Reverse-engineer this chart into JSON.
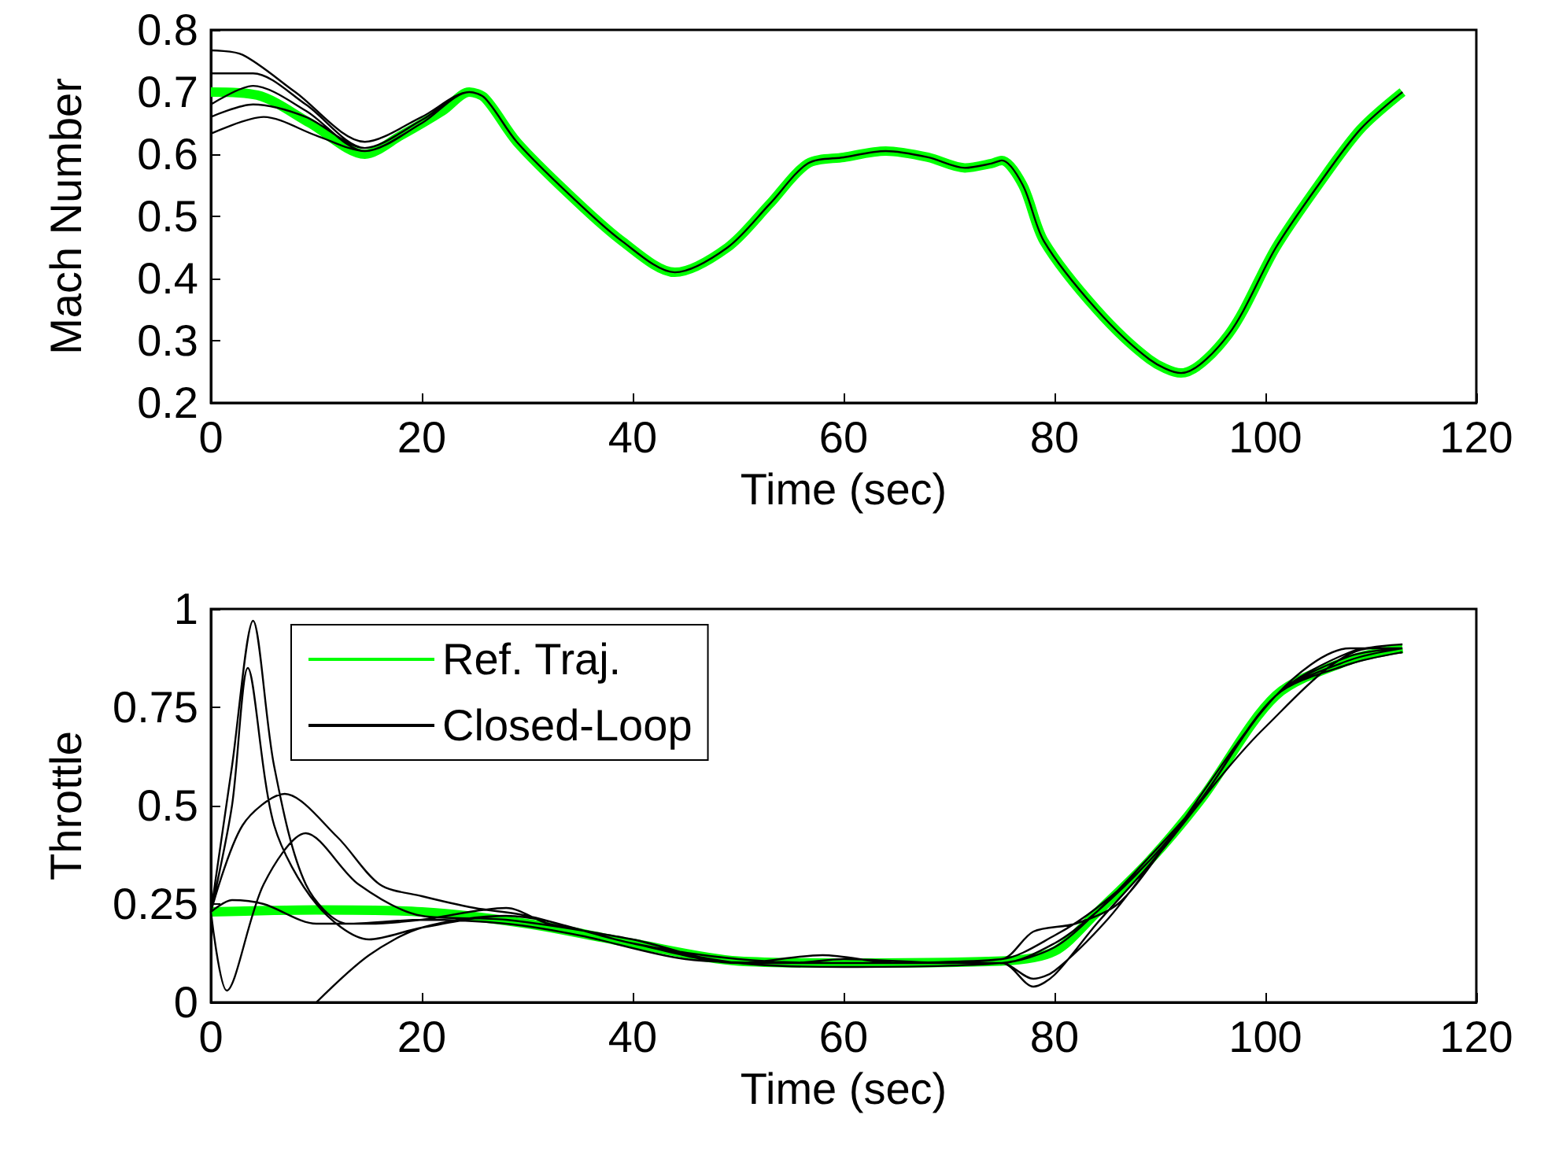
{
  "chart_data": [
    {
      "type": "line",
      "xlabel": "Time (sec)",
      "ylabel": "Mach Number",
      "xlim": [
        0,
        120
      ],
      "ylim": [
        0.2,
        0.8
      ],
      "xticks": [
        0,
        20,
        40,
        60,
        80,
        100,
        120
      ],
      "yticks": [
        0.2,
        0.3,
        0.4,
        0.5,
        0.6,
        0.7,
        0.8
      ],
      "legend": false,
      "grid": false,
      "series": [
        {
          "color": "#00ff00",
          "x": [
            0,
            4.4,
            9.4,
            14.6,
            18,
            22,
            24.5,
            26,
            29,
            34,
            39,
            44,
            49,
            53,
            56.6,
            60,
            64,
            68,
            71.5,
            74,
            75,
            77,
            79,
            84,
            89,
            92,
            96.5,
            101,
            105,
            109,
            113
          ],
          "values": [
            0.7,
            0.695,
            0.65,
            0.6,
            0.63,
            0.67,
            0.7,
            0.69,
            0.62,
            0.535,
            0.46,
            0.41,
            0.45,
            0.52,
            0.585,
            0.595,
            0.605,
            0.595,
            0.578,
            0.585,
            0.59,
            0.55,
            0.46,
            0.35,
            0.27,
            0.248,
            0.31,
            0.45,
            0.55,
            0.64,
            0.7
          ]
        },
        {
          "color": "#000000",
          "x": [
            0,
            3,
            8,
            14.6,
            20,
            24.5,
            26,
            29,
            34,
            39,
            44,
            49,
            53,
            56.6,
            60,
            64,
            68,
            71.5,
            74,
            75,
            77,
            79,
            84,
            89,
            92,
            96.5,
            101,
            105,
            109,
            113,
            null,
            0,
            5,
            10,
            14.6,
            20,
            24.5,
            26,
            29,
            34,
            39,
            44,
            49,
            53,
            56.6,
            60,
            64,
            68,
            71.5,
            74,
            75,
            77,
            79,
            84,
            89,
            92,
            96.5,
            101,
            105,
            109,
            113,
            null,
            0,
            4,
            9,
            14.6,
            20,
            24.5,
            26,
            29,
            34,
            39,
            44,
            49,
            53,
            56.6,
            60,
            64,
            68,
            71.5,
            74,
            75,
            77,
            79,
            84,
            89,
            92,
            96.5,
            101,
            105,
            109,
            113,
            null,
            0,
            4,
            9,
            14.6,
            20,
            24.5,
            26,
            29,
            34,
            39,
            44,
            49,
            53,
            56.6,
            60,
            64,
            68,
            71.5,
            74,
            75,
            77,
            79,
            84,
            89,
            92,
            96.5,
            101,
            105,
            109,
            113,
            null,
            0,
            4,
            9,
            14.6,
            20,
            24.5,
            26,
            29,
            34,
            39,
            44,
            49,
            53,
            56.6,
            60,
            64,
            68,
            71.5,
            74,
            75,
            77,
            79,
            84,
            89,
            92,
            96.5,
            101,
            105,
            109,
            113
          ],
          "values": [
            0.767,
            0.76,
            0.7,
            0.62,
            0.66,
            0.7,
            0.69,
            0.62,
            0.535,
            0.46,
            0.41,
            0.45,
            0.52,
            0.585,
            0.595,
            0.605,
            0.595,
            0.578,
            0.585,
            0.59,
            0.55,
            0.46,
            0.35,
            0.27,
            0.248,
            0.31,
            0.45,
            0.55,
            0.64,
            0.7,
            null,
            0.633,
            0.66,
            0.63,
            0.605,
            0.65,
            0.7,
            0.69,
            0.62,
            0.535,
            0.46,
            0.41,
            0.45,
            0.52,
            0.585,
            0.595,
            0.605,
            0.595,
            0.578,
            0.585,
            0.59,
            0.55,
            0.46,
            0.35,
            0.27,
            0.248,
            0.31,
            0.45,
            0.55,
            0.64,
            0.7,
            null,
            0.73,
            0.73,
            0.68,
            0.61,
            0.655,
            0.7,
            0.69,
            0.62,
            0.535,
            0.46,
            0.41,
            0.45,
            0.52,
            0.585,
            0.595,
            0.605,
            0.595,
            0.578,
            0.585,
            0.59,
            0.55,
            0.46,
            0.35,
            0.27,
            0.248,
            0.31,
            0.45,
            0.55,
            0.64,
            0.7,
            null,
            0.68,
            0.71,
            0.67,
            0.605,
            0.65,
            0.7,
            0.69,
            0.62,
            0.535,
            0.46,
            0.41,
            0.45,
            0.52,
            0.585,
            0.595,
            0.605,
            0.595,
            0.578,
            0.585,
            0.59,
            0.55,
            0.46,
            0.35,
            0.27,
            0.248,
            0.31,
            0.45,
            0.55,
            0.64,
            0.7,
            null,
            0.66,
            0.68,
            0.66,
            0.61,
            0.655,
            0.7,
            0.69,
            0.62,
            0.535,
            0.46,
            0.41,
            0.45,
            0.52,
            0.585,
            0.595,
            0.605,
            0.595,
            0.578,
            0.585,
            0.59,
            0.55,
            0.46,
            0.35,
            0.27,
            0.248,
            0.31,
            0.45,
            0.55,
            0.64,
            0.7
          ]
        }
      ]
    },
    {
      "type": "line",
      "xlabel": "Time (sec)",
      "ylabel": "Throttle",
      "xlim": [
        0,
        120
      ],
      "ylim": [
        0,
        1
      ],
      "xticks": [
        0,
        20,
        40,
        60,
        80,
        100,
        120
      ],
      "yticks": [
        0,
        0.25,
        0.5,
        0.75,
        1
      ],
      "legend": "top left",
      "grid": false,
      "series": [
        {
          "name": "Ref. Traj.",
          "color": "#00ff00",
          "x": [
            0,
            10,
            20,
            30,
            40,
            50,
            60,
            75,
            80,
            84,
            89,
            94,
            101,
            108,
            113
          ],
          "values": [
            0.23,
            0.235,
            0.23,
            0.2,
            0.15,
            0.105,
            0.1,
            0.105,
            0.13,
            0.228,
            0.36,
            0.52,
            0.78,
            0.87,
            0.9
          ]
        },
        {
          "name": "Closed-Loop",
          "color": "#000000",
          "x": [
            0,
            2,
            4,
            6,
            9,
            13,
            20,
            28,
            35,
            45,
            55,
            60,
            70,
            75,
            78,
            80,
            85,
            90,
            100,
            110,
            113,
            null,
            0,
            2,
            3.5,
            6,
            10,
            15,
            20,
            28,
            40,
            50,
            60,
            75,
            80,
            84,
            89,
            94,
            101,
            108,
            113,
            null,
            0,
            3,
            7,
            12,
            16,
            20,
            25,
            30,
            40,
            50,
            60,
            75,
            80,
            84,
            89,
            94,
            101,
            108,
            113,
            null,
            0,
            1.5,
            5,
            9,
            14,
            20,
            28,
            40,
            50,
            60,
            75,
            78,
            80,
            84,
            89,
            94,
            101,
            108,
            113,
            null,
            10,
            15,
            20,
            28,
            40,
            50,
            60,
            75,
            80,
            84,
            89,
            94,
            101,
            108,
            113,
            null,
            0,
            2,
            5,
            10,
            15,
            20,
            28,
            32,
            40,
            50,
            58,
            65,
            75,
            78,
            82,
            86,
            90,
            101,
            108,
            113
          ],
          "values": [
            0.23,
            0.6,
            0.97,
            0.6,
            0.3,
            0.2,
            0.21,
            0.2,
            0.17,
            0.11,
            0.1,
            0.11,
            0.1,
            0.1,
            0.06,
            0.08,
            0.21,
            0.38,
            0.7,
            0.9,
            0.9,
            null,
            0.23,
            0.5,
            0.85,
            0.45,
            0.25,
            0.16,
            0.19,
            0.22,
            0.15,
            0.1,
            0.1,
            0.11,
            0.17,
            0.24,
            0.36,
            0.52,
            0.78,
            0.88,
            0.9,
            null,
            0.23,
            0.45,
            0.53,
            0.42,
            0.3,
            0.27,
            0.24,
            0.22,
            0.15,
            0.11,
            0.1,
            0.1,
            0.15,
            0.23,
            0.36,
            0.52,
            0.78,
            0.86,
            0.89,
            null,
            0.23,
            0.03,
            0.3,
            0.43,
            0.3,
            0.22,
            0.21,
            0.16,
            0.1,
            0.1,
            0.1,
            0.04,
            0.07,
            0.2,
            0.35,
            0.52,
            0.78,
            0.89,
            0.91,
            null,
            0.0,
            0.12,
            0.19,
            0.22,
            0.15,
            0.1,
            0.09,
            0.1,
            0.14,
            0.23,
            0.37,
            0.52,
            0.78,
            0.87,
            0.9,
            null,
            0.23,
            0.26,
            0.25,
            0.2,
            0.2,
            0.21,
            0.24,
            0.2,
            0.16,
            0.1,
            0.12,
            0.1,
            0.11,
            0.18,
            0.2,
            0.25,
            0.38,
            0.78,
            0.9,
            0.9
          ]
        }
      ]
    }
  ]
}
